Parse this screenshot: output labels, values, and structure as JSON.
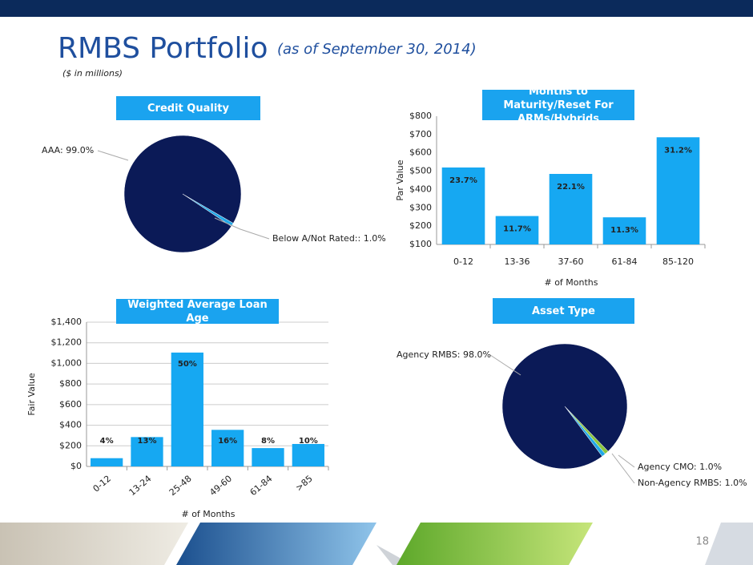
{
  "slide": {
    "title": "RMBS Portfolio",
    "subtitle": "(as of September 30, 2014)",
    "note": "($ in millions)",
    "page_number": 18
  },
  "chart_data": [
    {
      "type": "pie",
      "title": "Credit Quality",
      "values": [
        99.0,
        1.0
      ],
      "value_labels": [
        "AAA: 99.0%",
        "Below A/Not Rated:: 1.0%"
      ],
      "colors": [
        "#0b1a57",
        "#22a9e8"
      ]
    },
    {
      "type": "bar",
      "title": "Months to Maturity/Reset For ARMs/Hybrids",
      "categories": [
        "0-12",
        "13-36",
        "37-60",
        "61-84",
        "85-120"
      ],
      "values": [
        520,
        255,
        485,
        248,
        685
      ],
      "annotations": [
        "23.7%",
        "11.7%",
        "22.1%",
        "11.3%",
        "31.2%"
      ],
      "color": "#16a8f2",
      "x_label": "# of Months",
      "y_label": "Par Value",
      "ylim": [
        100,
        800
      ],
      "yticks": [
        {
          "value": 100,
          "label": "$100"
        },
        {
          "value": 200,
          "label": "$200"
        },
        {
          "value": 300,
          "label": "$300"
        },
        {
          "value": 400,
          "label": "$400"
        },
        {
          "value": 500,
          "label": "$500"
        },
        {
          "value": 600,
          "label": "$600"
        },
        {
          "value": 700,
          "label": "$700"
        },
        {
          "value": 800,
          "label": "$800"
        }
      ],
      "grid": false
    },
    {
      "type": "bar",
      "title": "Weighted Average Loan Age",
      "categories": [
        "0-12",
        "13-24",
        "25-48",
        "49-60",
        "61-84",
        ">85"
      ],
      "values": [
        80,
        285,
        1105,
        355,
        178,
        218
      ],
      "annotations": [
        "4%",
        "13%",
        "50%",
        "16%",
        "8%",
        "10%"
      ],
      "color": "#16a8f2",
      "x_label": "# of Months",
      "y_label": "Fair Value",
      "ylim": [
        0,
        1400
      ],
      "yticks": [
        {
          "value": 0,
          "label": "$0"
        },
        {
          "value": 200,
          "label": "$200"
        },
        {
          "value": 400,
          "label": "$400"
        },
        {
          "value": 600,
          "label": "$600"
        },
        {
          "value": 800,
          "label": "$800"
        },
        {
          "value": 1000,
          "label": "$1,000"
        },
        {
          "value": 1200,
          "label": "$1,200"
        },
        {
          "value": 1400,
          "label": "$1,400"
        }
      ],
      "grid": true
    },
    {
      "type": "pie",
      "title": "Asset Type",
      "values": [
        98.0,
        1.0,
        1.0
      ],
      "value_labels": [
        "Agency RMBS: 98.0%",
        "Agency CMO: 1.0%",
        "Non-Agency RMBS: 1.0%"
      ],
      "colors": [
        "#0b1a57",
        "#8cc63f",
        "#22a9e8"
      ]
    }
  ]
}
